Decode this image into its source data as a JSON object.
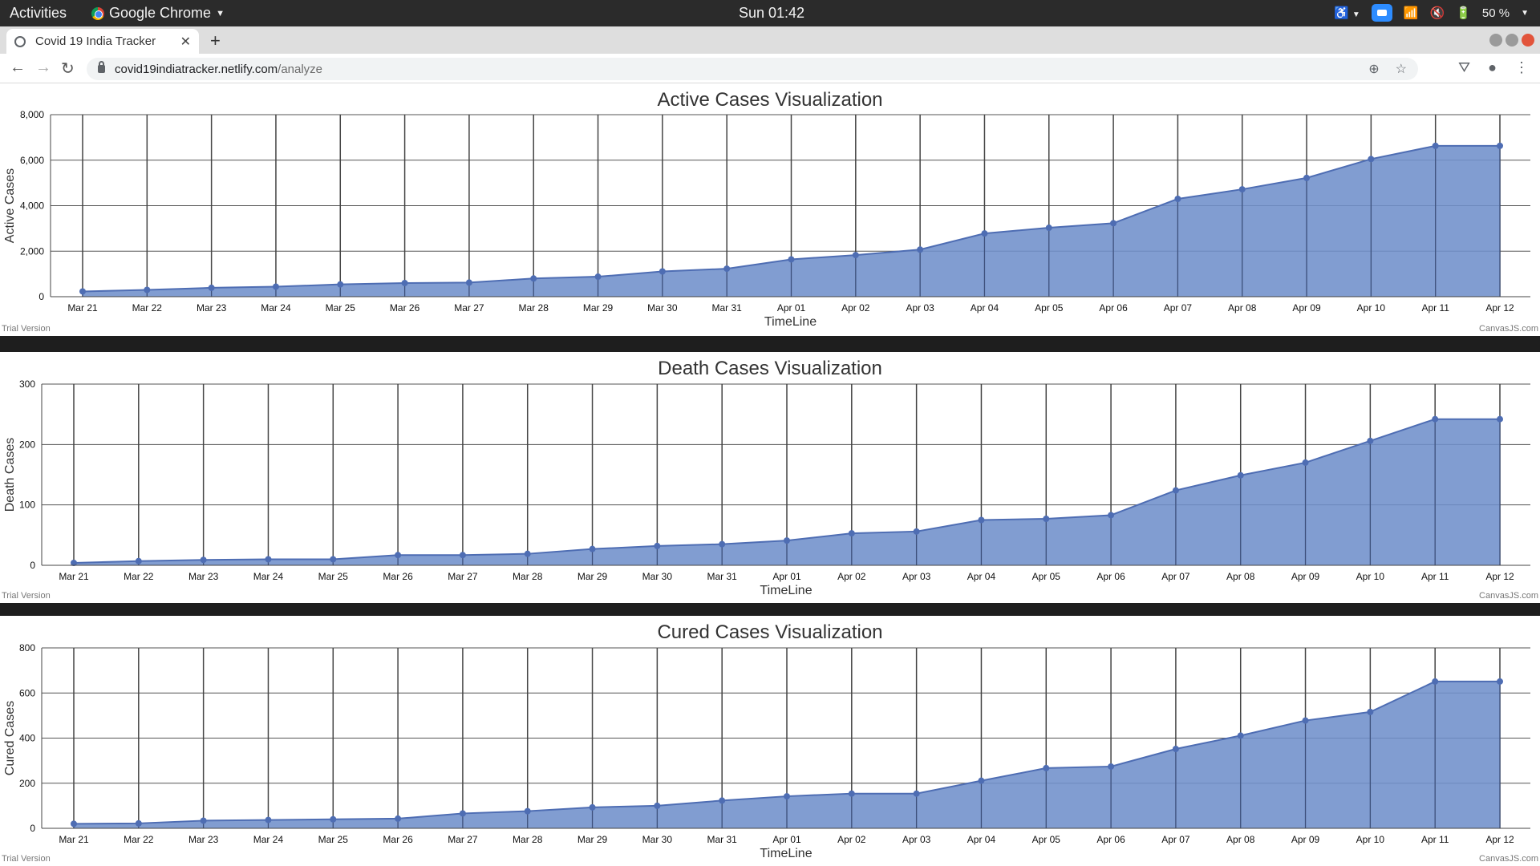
{
  "system": {
    "activities": "Activities",
    "app_name": "Google Chrome",
    "clock": "Sun 01:42",
    "battery": "50 %"
  },
  "browser": {
    "tab_title": "Covid 19 India Tracker",
    "url_host": "covid19indiatracker.netlify.com",
    "url_path": "/analyze"
  },
  "footer": {
    "trial": "Trial Version",
    "brand": "CanvasJS.com"
  },
  "colors": {
    "fill": "#6f8fcb",
    "line": "#4e6db3",
    "grid": "#444444"
  },
  "chart_data": [
    {
      "type": "area",
      "title": "Active Cases Visualization",
      "xlabel": "TimeLine",
      "ylabel": "Active Cases",
      "ylim": [
        0,
        8000
      ],
      "yticks": [
        "0",
        "2,000",
        "4,000",
        "6,000",
        "8,000"
      ],
      "categories": [
        "Mar 21",
        "Mar 22",
        "Mar 23",
        "Mar 24",
        "Mar 25",
        "Mar 26",
        "Mar 27",
        "Mar 28",
        "Mar 29",
        "Mar 30",
        "Mar 31",
        "Apr 01",
        "Apr 02",
        "Apr 03",
        "Apr 04",
        "Apr 05",
        "Apr 06",
        "Apr 07",
        "Apr 08",
        "Apr 09",
        "Apr 10",
        "Apr 11",
        "Apr 12"
      ],
      "values": [
        230,
        300,
        390,
        440,
        540,
        600,
        620,
        800,
        880,
        1110,
        1230,
        1640,
        1830,
        2070,
        2780,
        3030,
        3230,
        4300,
        4720,
        5220,
        6050,
        6630,
        6630
      ]
    },
    {
      "type": "area",
      "title": "Death Cases Visualization",
      "xlabel": "TimeLine",
      "ylabel": "Death Cases",
      "ylim": [
        0,
        300
      ],
      "yticks": [
        "0",
        "100",
        "200",
        "300"
      ],
      "categories": [
        "Mar 21",
        "Mar 22",
        "Mar 23",
        "Mar 24",
        "Mar 25",
        "Mar 26",
        "Mar 27",
        "Mar 28",
        "Mar 29",
        "Mar 30",
        "Mar 31",
        "Apr 01",
        "Apr 02",
        "Apr 03",
        "Apr 04",
        "Apr 05",
        "Apr 06",
        "Apr 07",
        "Apr 08",
        "Apr 09",
        "Apr 10",
        "Apr 11",
        "Apr 12"
      ],
      "values": [
        4,
        7,
        9,
        10,
        10,
        17,
        17,
        19,
        27,
        32,
        35,
        41,
        53,
        56,
        75,
        77,
        83,
        124,
        149,
        170,
        206,
        242,
        242
      ]
    },
    {
      "type": "area",
      "title": "Cured Cases Visualization",
      "xlabel": "TimeLine",
      "ylabel": "Cured Cases",
      "ylim": [
        0,
        800
      ],
      "yticks": [
        "0",
        "200",
        "400",
        "600",
        "800"
      ],
      "categories": [
        "Mar 21",
        "Mar 22",
        "Mar 23",
        "Mar 24",
        "Mar 25",
        "Mar 26",
        "Mar 27",
        "Mar 28",
        "Mar 29",
        "Mar 30",
        "Mar 31",
        "Apr 01",
        "Apr 02",
        "Apr 03",
        "Apr 04",
        "Apr 05",
        "Apr 06",
        "Apr 07",
        "Apr 08",
        "Apr 09",
        "Apr 10",
        "Apr 11",
        "Apr 12"
      ],
      "values": [
        20,
        22,
        34,
        37,
        40,
        43,
        66,
        76,
        93,
        100,
        123,
        142,
        154,
        154,
        211,
        267,
        274,
        352,
        411,
        478,
        516,
        651,
        651
      ]
    }
  ]
}
